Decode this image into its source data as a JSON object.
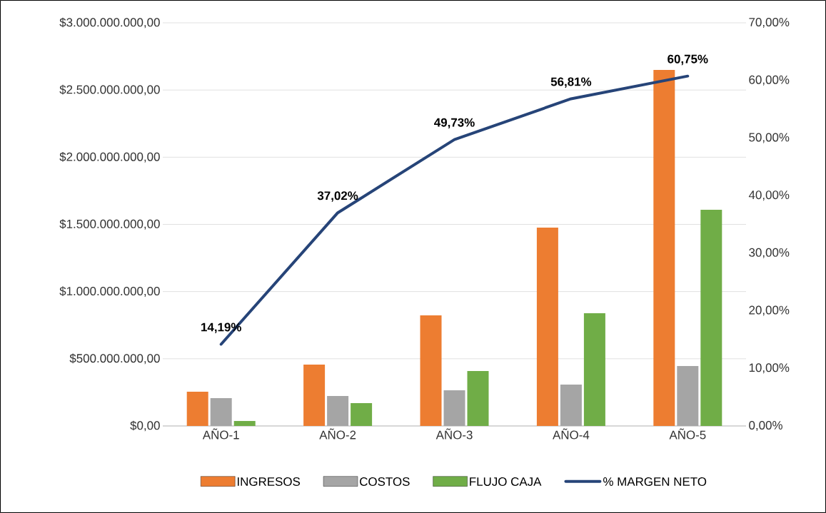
{
  "chart_data": {
    "type": "bar",
    "categories": [
      "AÑO-1",
      "AÑO-2",
      "AÑO-3",
      "AÑO-4",
      "AÑO-5"
    ],
    "series": [
      {
        "name": "INGRESOS",
        "color": "#ed7d31",
        "values": [
          255000000,
          457000000,
          823000000,
          1476000000,
          2650000000
        ]
      },
      {
        "name": "COSTOS",
        "color": "#a5a5a5",
        "values": [
          207000000,
          223000000,
          265000000,
          308000000,
          446000000
        ]
      },
      {
        "name": "FLUJO CAJA",
        "color": "#70ad47",
        "values": [
          37000000,
          170000000,
          409000000,
          839000000,
          1609000000
        ]
      },
      {
        "name": "% MARGEN NETO",
        "type": "line",
        "axis": "y2",
        "color": "#264478",
        "values": [
          14.19,
          37.02,
          49.73,
          56.81,
          60.75
        ],
        "value_labels": [
          "14,19%",
          "37,02%",
          "49,73%",
          "56,81%",
          "60,75%"
        ]
      }
    ],
    "ylim": [
      0,
      3000000000
    ],
    "yticks": [
      {
        "value": 0,
        "label": "$0,00"
      },
      {
        "value": 500000000,
        "label": "$500.000.000,00"
      },
      {
        "value": 1000000000,
        "label": "$1.000.000.000,00"
      },
      {
        "value": 1500000000,
        "label": "$1.500.000.000,00"
      },
      {
        "value": 2000000000,
        "label": "$2.000.000.000,00"
      },
      {
        "value": 2500000000,
        "label": "$2.500.000.000,00"
      },
      {
        "value": 3000000000,
        "label": "$3.000.000.000,00"
      }
    ],
    "y2lim": [
      0,
      70
    ],
    "y2ticks": [
      {
        "value": 0,
        "label": "0,00%"
      },
      {
        "value": 10,
        "label": "10,00%"
      },
      {
        "value": 20,
        "label": "20,00%"
      },
      {
        "value": 30,
        "label": "30,00%"
      },
      {
        "value": 40,
        "label": "40,00%"
      },
      {
        "value": 50,
        "label": "50,00%"
      },
      {
        "value": 60,
        "label": "60,00%"
      },
      {
        "value": 70,
        "label": "70,00%"
      }
    ],
    "grid": "y",
    "legend": "bottom",
    "marker": "none",
    "line_style": "solid"
  }
}
